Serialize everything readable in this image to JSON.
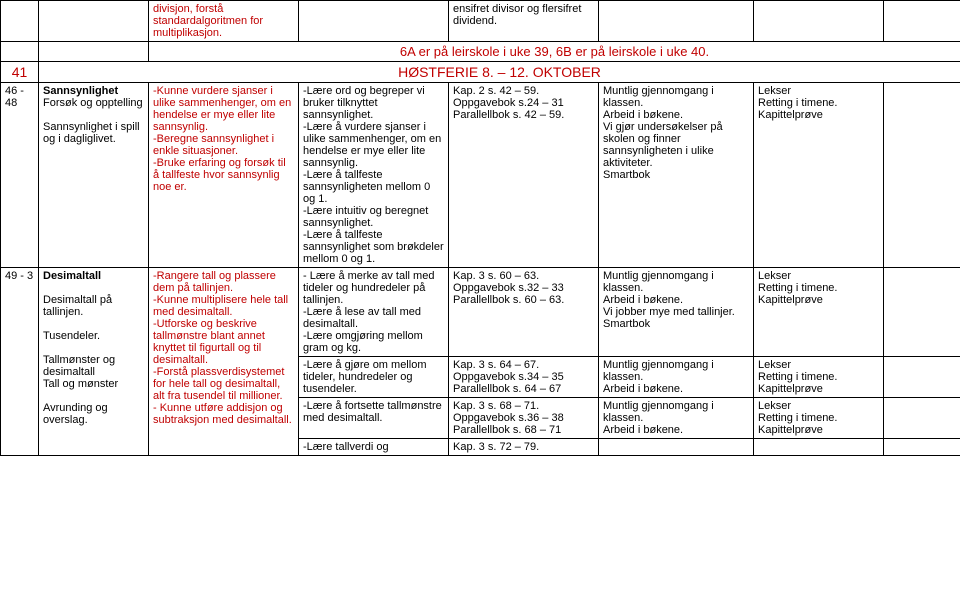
{
  "colors": {
    "red": "#c00000",
    "black": "#000000",
    "border": "#000000"
  },
  "rows": {
    "r0": {
      "c2": "divisjon, forstå standardalgoritmen for multiplikasjon.",
      "c3": "ensifret divisor og flersifret dividend."
    },
    "banner6a": "6A er på leirskole i uke 39, 6B er på leirskole i uke 40.",
    "r41": {
      "week": "41",
      "banner": "HØSTFERIE 8. – 12. OKTOBER"
    },
    "r4648": {
      "week": "46 - 48",
      "topic": "Sannsynlighet\nForsøk og opptelling\n\nSannsynlighet i spill og i dagliglivet.",
      "goal1": "-Kunne vurdere sjanser i ulike sammenhenger, om en hendelse er mye eller lite sannsynlig.\n-Beregne sannsynlighet i enkle situasjoner.\n-Bruke erfaring og forsøk til å tallfeste hvor sannsynlig noe er.",
      "goal2": "-Lære ord og begreper vi bruker tilknyttet sannsynlighet.\n-Lære å vurdere sjanser i ulike sammenhenger, om en hendelse er mye eller lite sannsynlig.\n-Lære å tallfeste sannsynligheten mellom 0 og 1.\n-Lære intuitiv og beregnet sannsynlighet.\n-Lære å tallfeste sannsynlighet som brøkdeler mellom 0 og 1.",
      "ref": "Kap. 2 s. 42 – 59.\nOppgavebok s.24 – 31\nParallellbok s. 42 – 59.",
      "method": "Muntlig gjennomgang i klassen.\nArbeid i bøkene.\nVi gjør undersøkelser på skolen og finner sannsynligheten i ulike aktiviteter.\nSmartbok",
      "assess": "Lekser\nRetting i timene.\nKapittelprøve"
    },
    "r49": {
      "week": "49 - 3",
      "topic_bold": "Desimaltall",
      "topic1": "Desimaltall på tallinjen.",
      "topic2": "Tusendeler.",
      "topic3": "Tallmønster og desimaltall\nTall og mønster",
      "topic4": "Avrunding og overslag.",
      "goal1": "-Rangere tall og plassere dem på tallinjen.\n-Kunne multiplisere hele tall med desimaltall.\n-Utforske og beskrive tallmønstre blant annet knyttet til figurtall og til desimaltall.\n-Forstå plassverdisystemet for hele tall og desimaltall, alt fra tusendel til millioner.\n- Kunne utføre addisjon og subtraksjon med desimaltall.",
      "seg1": {
        "goal2": "- Lære å merke av tall med tideler og hundredeler på tallinjen.\n-Lære å lese av tall med desimaltall.\n-Lære omgjøring mellom gram og kg.",
        "ref": "Kap. 3 s. 60 – 63.\nOppgavebok s.32 – 33\nParallellbok s. 60 – 63.",
        "method": "Muntlig gjennomgang i klassen.\nArbeid i bøkene.\nVi jobber mye med tallinjer.\nSmartbok",
        "assess": "Lekser\nRetting i timene.\nKapittelprøve"
      },
      "seg2": {
        "goal2": "-Lære å gjøre om mellom tideler, hundredeler og tusendeler.",
        "ref": "Kap. 3 s. 64 – 67.\nOppgavebok s.34 – 35\nParallellbok s. 64 – 67",
        "method": "Muntlig gjennomgang i klassen.\nArbeid i bøkene.",
        "assess": "Lekser\nRetting i timene.\nKapittelprøve"
      },
      "seg3": {
        "goal2": "-Lære å fortsette tallmønstre med desimaltall.",
        "ref": "Kap. 3 s. 68 – 71.\nOppgavebok s.36 – 38\nParallellbok s. 68 – 71",
        "method": "Muntlig gjennomgang i klassen.\nArbeid i bøkene.",
        "assess": "Lekser\nRetting i timene.\nKapittelprøve"
      },
      "seg4": {
        "goal2": "-Lære tallverdi og",
        "ref": "Kap. 3 s. 72 – 79."
      }
    }
  }
}
